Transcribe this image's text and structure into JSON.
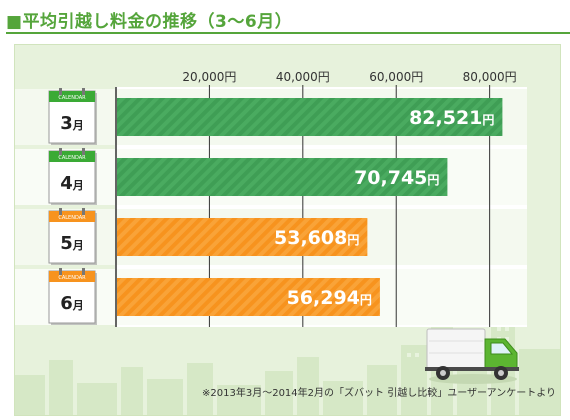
{
  "title": "■平均引越し料金の推移（3〜6月）",
  "note": "※2013年3月〜2014年2月の「ズバット 引越し比較」ユーザーアンケートより",
  "calendar_word": "CALENDAR",
  "colors": {
    "green_bar": "#3f9e55",
    "orange_bar": "#f7931e",
    "title": "#55a53b",
    "cal_green": "#3aaa35",
    "cal_orange": "#f7931e"
  },
  "chart_data": {
    "type": "bar",
    "orientation": "horizontal",
    "categories": [
      "3月",
      "4月",
      "5月",
      "6月"
    ],
    "category_numbers": [
      "3",
      "4",
      "5",
      "6"
    ],
    "category_unit": "月",
    "values": [
      82521,
      70745,
      53608,
      56294
    ],
    "value_labels": [
      "82,521",
      "70,745",
      "53,608",
      "56,294"
    ],
    "value_unit": "円",
    "bar_colors": [
      "green",
      "green",
      "orange",
      "orange"
    ],
    "xticks": [
      20000,
      40000,
      60000,
      80000
    ],
    "xtick_labels": [
      "20,000円",
      "40,000円",
      "60,000円",
      "80,000円"
    ],
    "xlim": [
      0,
      88000
    ],
    "grid": true
  }
}
